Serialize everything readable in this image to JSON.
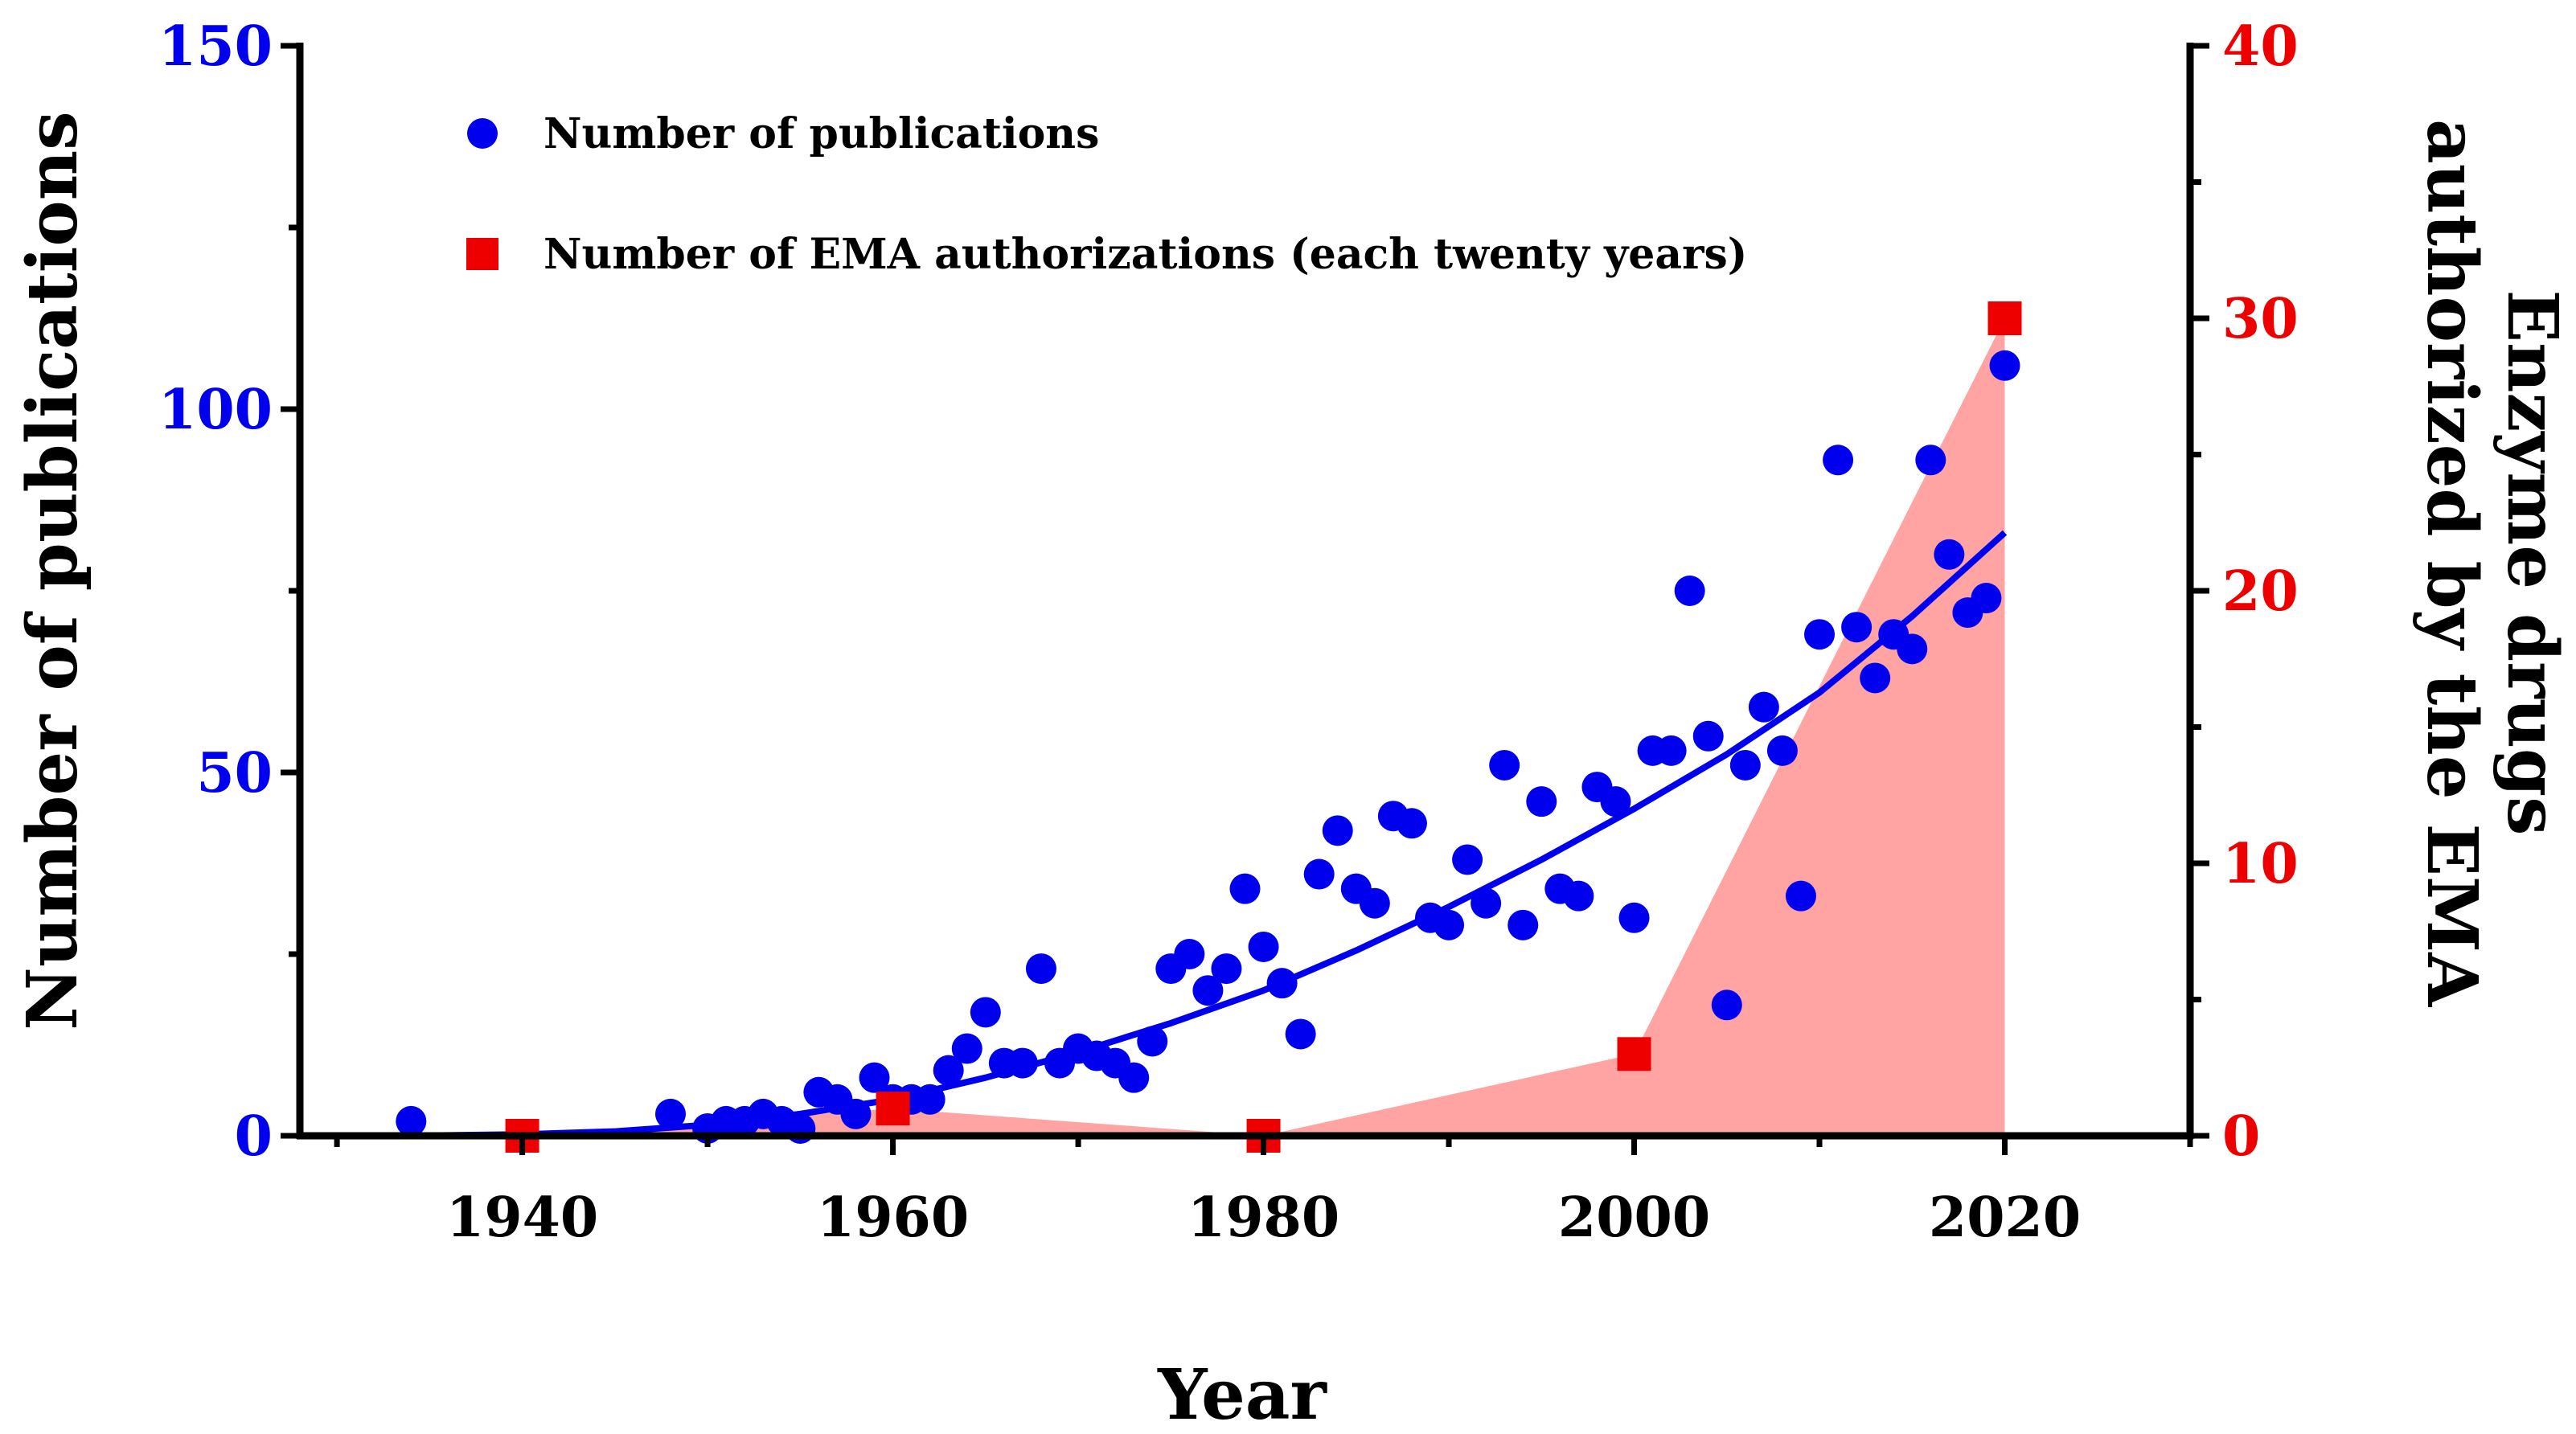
{
  "chart_data": {
    "type": "scatter",
    "xlabel": "Year",
    "ylabel_left": "Number of publications",
    "ylabel_right": [
      "Enzyme drugs",
      "authorized by the EMA"
    ],
    "xlim": [
      1928,
      2030
    ],
    "ylim_left": [
      0,
      150
    ],
    "ylim_right": [
      0,
      40
    ],
    "x_ticks": [
      "1940",
      "1960",
      "1980",
      "2000",
      "2020"
    ],
    "y_left_ticks": [
      "0",
      "50",
      "100",
      "150"
    ],
    "y_right_ticks": [
      "0",
      "10",
      "20",
      "30",
      "40"
    ],
    "colors": {
      "publications": "#0000ee",
      "ema": "#ee0000",
      "ema_fill": "#ffa3a3",
      "axis": "#000000"
    },
    "legend": {
      "placement": "top-left",
      "entries": [
        "Number of publications",
        "Number of EMA authorizations (each twenty years)"
      ]
    },
    "series": [
      {
        "name": "Number of publications",
        "axis": "left",
        "marker": "circle",
        "x": [
          1934,
          1948,
          1950,
          1951,
          1952,
          1953,
          1954,
          1955,
          1956,
          1957,
          1958,
          1959,
          1960,
          1961,
          1962,
          1963,
          1964,
          1965,
          1966,
          1967,
          1968,
          1969,
          1970,
          1971,
          1972,
          1973,
          1974,
          1975,
          1976,
          1977,
          1978,
          1979,
          1980,
          1981,
          1982,
          1983,
          1984,
          1985,
          1986,
          1987,
          1988,
          1989,
          1990,
          1991,
          1992,
          1993,
          1994,
          1995,
          1996,
          1997,
          1998,
          1999,
          2000,
          2001,
          2002,
          2003,
          2004,
          2005,
          2006,
          2007,
          2008,
          2009,
          2010,
          2011,
          2012,
          2013,
          2014,
          2015,
          2016,
          2017,
          2018,
          2019,
          2020
        ],
        "y": [
          2,
          3,
          1,
          2,
          2,
          3,
          2,
          1,
          6,
          5,
          3,
          8,
          5,
          5,
          5,
          9,
          12,
          17,
          10,
          10,
          23,
          10,
          12,
          11,
          10,
          8,
          13,
          23,
          25,
          20,
          23,
          34,
          26,
          21,
          14,
          36,
          42,
          34,
          32,
          44,
          43,
          30,
          29,
          38,
          32,
          51,
          29,
          46,
          34,
          33,
          48,
          46,
          30,
          53,
          53,
          75,
          55,
          18,
          51,
          59,
          53,
          33,
          69,
          93,
          70,
          63,
          69,
          67,
          93,
          80,
          72,
          74,
          106
        ]
      },
      {
        "name": "Number of EMA authorizations (each twenty years)",
        "axis": "right",
        "marker": "square",
        "fill": true,
        "x": [
          1940,
          1960,
          1980,
          2000,
          2020
        ],
        "y": [
          0,
          1,
          0,
          3,
          30
        ]
      },
      {
        "name": "Publications trend fit",
        "axis": "left",
        "type": "line",
        "x": [
          1934,
          1940,
          1945,
          1950,
          1955,
          1960,
          1965,
          1970,
          1975,
          1980,
          1985,
          1990,
          1995,
          2000,
          2005,
          2010,
          2015,
          2020
        ],
        "y": [
          0,
          0.2,
          0.6,
          1.5,
          3,
          5,
          8,
          11.5,
          15.5,
          20,
          25.5,
          31.5,
          38,
          45,
          52.5,
          61,
          71.5,
          83
        ]
      }
    ]
  }
}
